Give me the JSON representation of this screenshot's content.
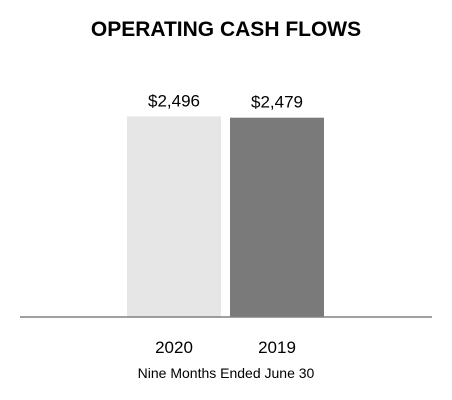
{
  "chart_data": {
    "type": "bar",
    "title": "OPERATING CASH FLOWS",
    "xlabel": "Nine Months Ended June 30",
    "ylabel": "",
    "categories": [
      "2020",
      "2019"
    ],
    "values": [
      2496,
      2479
    ],
    "data_labels": [
      "$2,496",
      "$2,479"
    ],
    "bar_colors": [
      "#e6e6e6",
      "#7a7a7a"
    ],
    "axis_color": "#808080",
    "ylim": [
      0,
      2500
    ],
    "grid": false,
    "legend": "none"
  }
}
